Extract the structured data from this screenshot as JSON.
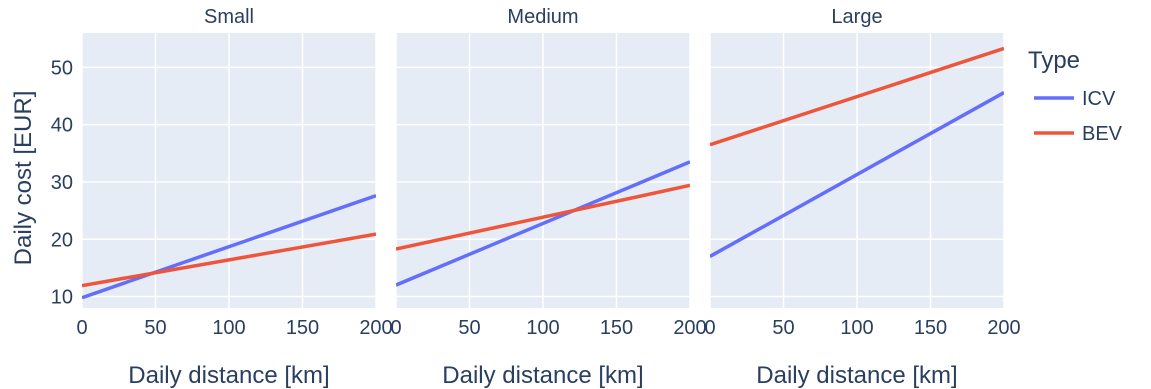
{
  "chart_data": {
    "type": "line",
    "ylabel": "Daily cost [EUR]",
    "xlabel": "Daily distance [km]",
    "xlim": [
      0,
      200
    ],
    "ylim": [
      8,
      56
    ],
    "xticks": [
      0,
      50,
      100,
      150,
      200
    ],
    "yticks": [
      10,
      20,
      30,
      40,
      50
    ],
    "grid": true,
    "legend": {
      "title": "Type",
      "placement": "right",
      "entries": [
        {
          "name": "ICV",
          "color": "#636efa"
        },
        {
          "name": "BEV",
          "color": "#ef553b"
        }
      ]
    },
    "facets": [
      {
        "title": "Small",
        "series": [
          {
            "name": "ICV",
            "color": "#636efa",
            "x": [
              0,
              200
            ],
            "y": [
              9.8,
              27.6
            ]
          },
          {
            "name": "BEV",
            "color": "#ef553b",
            "x": [
              0,
              200
            ],
            "y": [
              11.9,
              20.9
            ]
          }
        ]
      },
      {
        "title": "Medium",
        "series": [
          {
            "name": "ICV",
            "color": "#636efa",
            "x": [
              0,
              200
            ],
            "y": [
              12.0,
              33.5
            ]
          },
          {
            "name": "BEV",
            "color": "#ef553b",
            "x": [
              0,
              200
            ],
            "y": [
              18.3,
              29.4
            ]
          }
        ]
      },
      {
        "title": "Large",
        "series": [
          {
            "name": "ICV",
            "color": "#636efa",
            "x": [
              0,
              200
            ],
            "y": [
              17.0,
              45.6
            ]
          },
          {
            "name": "BEV",
            "color": "#ef553b",
            "x": [
              0,
              200
            ],
            "y": [
              36.5,
              53.3
            ]
          }
        ]
      }
    ]
  }
}
